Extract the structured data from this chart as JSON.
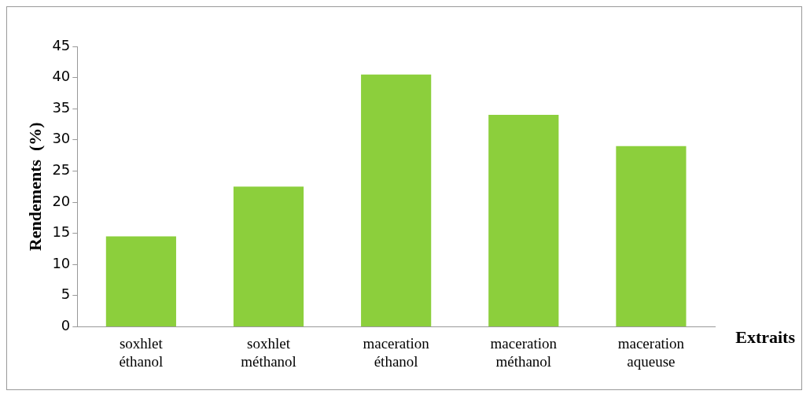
{
  "chart_data": {
    "type": "bar",
    "xlabel": "Extraits",
    "ylabel": "Rendements  (%)",
    "categories": [
      "soxhlet\néthanol",
      "soxhlet\nméthanol",
      "maceration\néthanol",
      "maceration\nméthanol",
      "maceration\naqueuse"
    ],
    "values": [
      14.5,
      22.5,
      40.5,
      34,
      29
    ],
    "color": "#8ccf3c",
    "ylim": [
      0,
      45
    ],
    "yticks": [
      0,
      5,
      10,
      15,
      20,
      25,
      30,
      35,
      40,
      45
    ],
    "grid": false,
    "legend": false
  }
}
